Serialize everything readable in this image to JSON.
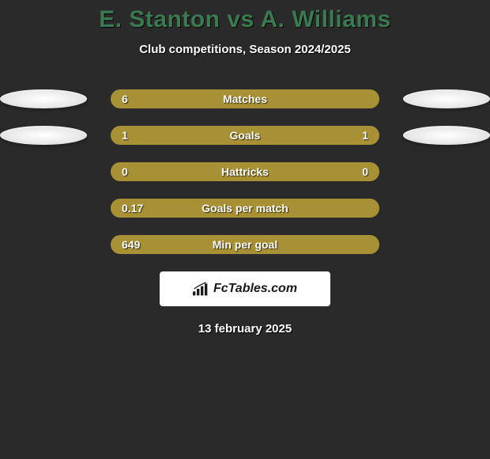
{
  "title": "E. Stanton vs A. Williams",
  "subtitle": "Club competitions, Season 2024/2025",
  "rows": [
    {
      "label": "Matches",
      "left": "6",
      "right": "",
      "show_left_ellipse": true,
      "show_right_ellipse": true
    },
    {
      "label": "Goals",
      "left": "1",
      "right": "1",
      "show_left_ellipse": true,
      "show_right_ellipse": true
    },
    {
      "label": "Hattricks",
      "left": "0",
      "right": "0",
      "show_left_ellipse": false,
      "show_right_ellipse": false
    },
    {
      "label": "Goals per match",
      "left": "0.17",
      "right": "",
      "show_left_ellipse": false,
      "show_right_ellipse": false
    },
    {
      "label": "Min per goal",
      "left": "649",
      "right": "",
      "show_left_ellipse": false,
      "show_right_ellipse": false
    }
  ],
  "colors": {
    "background": "#2a2a2a",
    "title": "#3a7a50",
    "bar": "#a89034",
    "text": "#ffffff",
    "ellipse": "#f0f0f0"
  },
  "logo_text": "FcTables.com",
  "date": "13 february 2025"
}
